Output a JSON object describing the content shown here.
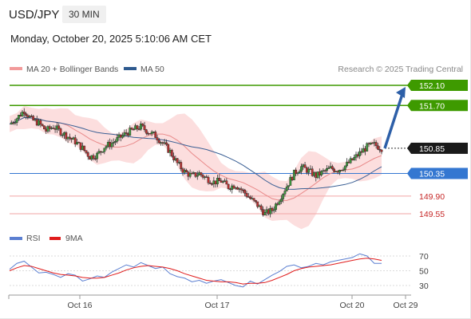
{
  "header": {
    "symbol": "USD/JPY",
    "timeframe": "30 MIN"
  },
  "datetime": "Monday, October 20, 2025 5:10:06 AM CET",
  "legend": {
    "ma20": "MA 20 + Bollinger Bands",
    "ma50": "MA 50",
    "credit": "Research © 2025 Trading Central",
    "rsi": "RSI",
    "rsi9": "9MA"
  },
  "colors": {
    "green": "#3e9a00",
    "blue": "#3477d1",
    "red": "#d9534f",
    "band": "#fbd3d3",
    "candle_up": "#3f9a3f",
    "candle_down": "#b83232",
    "arrow": "#2d5fa8",
    "current": "#1a1a1a"
  },
  "chart_data": [
    {
      "type": "candlestick",
      "ylim": [
        149.2,
        152.35
      ],
      "x_ticks": [
        "Oct 16",
        "Oct 17",
        "Oct 20",
        "Oct 29"
      ],
      "levels": [
        {
          "value": 152.1,
          "label": "152.10",
          "kind": "resistance"
        },
        {
          "value": 151.7,
          "label": "151.70",
          "kind": "resistance"
        },
        {
          "value": 150.85,
          "label": "150.85",
          "kind": "current"
        },
        {
          "value": 150.35,
          "label": "150.35",
          "kind": "pivot"
        },
        {
          "value": 149.9,
          "label": "149.90",
          "kind": "support"
        },
        {
          "value": 149.55,
          "label": "149.55",
          "kind": "support"
        }
      ],
      "close_path": [
        151.33,
        151.45,
        151.6,
        151.42,
        151.35,
        151.2,
        151.28,
        151.18,
        151.08,
        150.98,
        150.85,
        150.68,
        150.72,
        150.88,
        150.95,
        151.05,
        151.15,
        151.22,
        151.28,
        151.18,
        151.1,
        150.95,
        150.78,
        150.55,
        150.38,
        150.3,
        150.35,
        150.25,
        150.18,
        150.2,
        150.08,
        150.12,
        150.0,
        149.85,
        149.72,
        149.55,
        149.62,
        149.85,
        150.1,
        150.35,
        150.48,
        150.4,
        150.3,
        150.38,
        150.45,
        150.42,
        150.5,
        150.62,
        150.75,
        150.88,
        150.92,
        150.85
      ],
      "projection_target": 152.1
    },
    {
      "type": "line",
      "name": "RSI",
      "ylim": [
        20,
        80
      ],
      "y_ticks": [
        70,
        50,
        30
      ],
      "rsi_path": [
        52,
        60,
        63,
        55,
        47,
        48,
        45,
        41,
        46,
        44,
        36,
        39,
        43,
        41,
        48,
        53,
        58,
        55,
        61,
        57,
        53,
        55,
        46,
        42,
        40,
        35,
        37,
        33,
        36,
        38,
        34,
        30,
        28,
        36,
        32,
        38,
        44,
        49,
        56,
        58,
        54,
        56,
        60,
        58,
        62,
        64,
        66,
        68,
        73,
        70,
        60,
        60
      ],
      "ma9_path": [
        50,
        54,
        57,
        56,
        53,
        50,
        47,
        45,
        44,
        43,
        41,
        40,
        40,
        41,
        44,
        47,
        51,
        54,
        56,
        57,
        56,
        55,
        53,
        50,
        46,
        43,
        40,
        37,
        36,
        35,
        35,
        34,
        32,
        33,
        33,
        34,
        37,
        41,
        45,
        50,
        53,
        55,
        56,
        57,
        58,
        60,
        62,
        64,
        66,
        67,
        66,
        64
      ]
    }
  ]
}
